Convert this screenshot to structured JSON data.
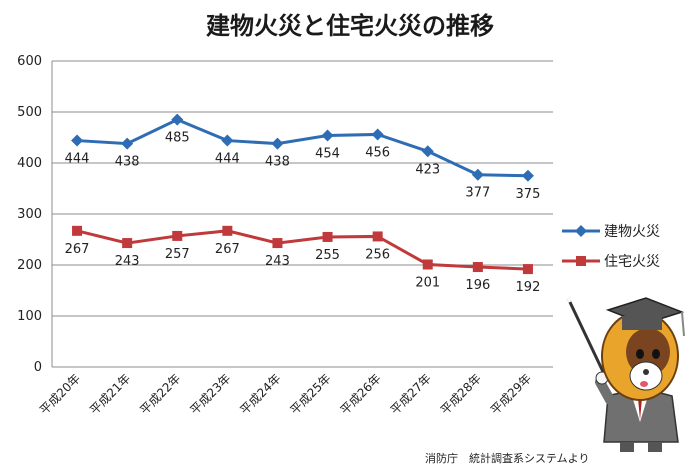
{
  "chart_data": {
    "type": "line",
    "title": "建物火災と住宅火災の推移",
    "categories": [
      "平成20年",
      "平成21年",
      "平成22年",
      "平成23年",
      "平成24年",
      "平成25年",
      "平成26年",
      "平成27年",
      "平成28年",
      "平成29年"
    ],
    "ylim": [
      0,
      600
    ],
    "yticks": [
      0,
      100,
      200,
      300,
      400,
      500,
      600
    ],
    "grid": true,
    "legend": "right",
    "series": [
      {
        "name": "建物火災",
        "color": "#2e6db4",
        "marker": "diamond",
        "values": [
          444,
          438,
          485,
          444,
          438,
          454,
          456,
          423,
          377,
          375
        ]
      },
      {
        "name": "住宅火災",
        "color": "#c0393b",
        "marker": "square",
        "values": [
          267,
          243,
          257,
          267,
          243,
          255,
          256,
          201,
          196,
          192
        ]
      }
    ]
  },
  "source": "消防庁　統計調査系システムより",
  "mascot_icon": "mascot-with-graduation-cap-and-pointer-icon"
}
